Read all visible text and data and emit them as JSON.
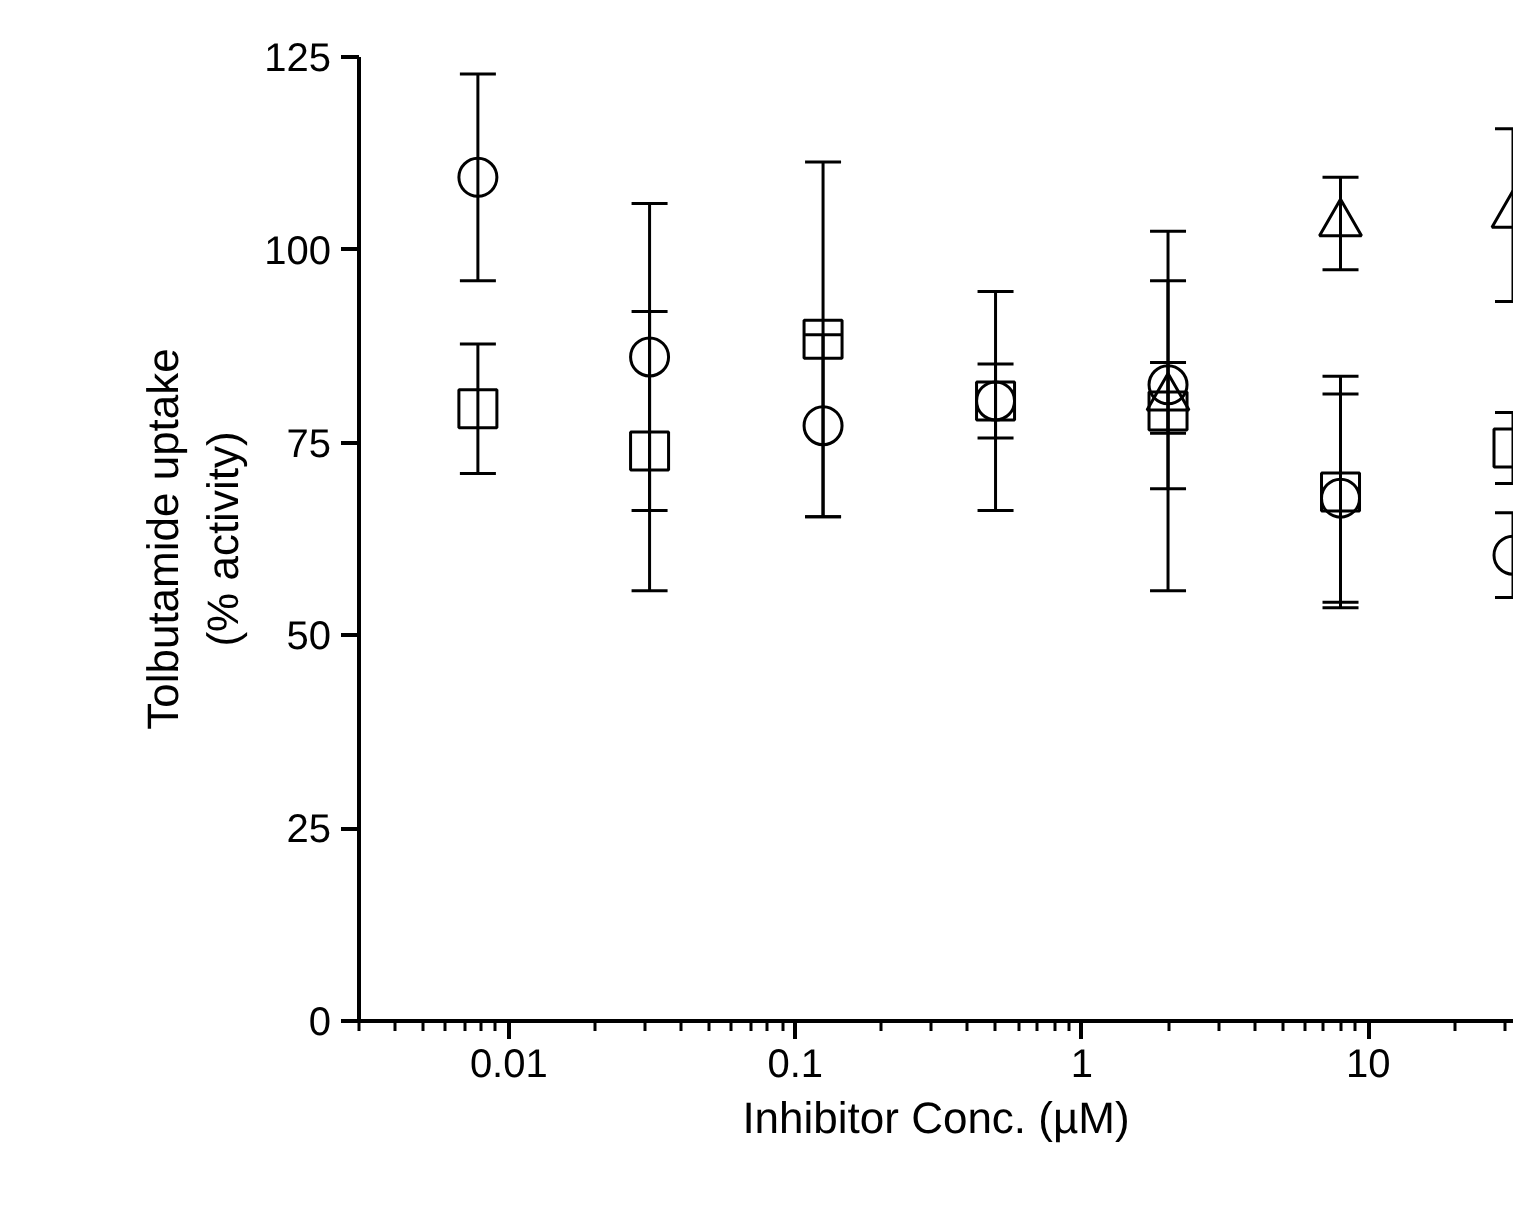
{
  "chart_data": {
    "type": "scatter",
    "xlabel": "Inhibitor Conc. (µM)",
    "ylabel": "Tolbutamide uptake\n(% activity)",
    "log": "x",
    "xlim": [
      0.003,
      32
    ],
    "xticks": [
      0.01,
      0.1,
      1,
      10
    ],
    "ylim": [
      0,
      125
    ],
    "yticks": [
      0,
      25,
      50,
      75,
      100,
      125
    ],
    "grid": false,
    "series": [
      {
        "color": "#000000",
        "marker": "circle",
        "x": [
          0.0078,
          0.031,
          0.125,
          0.5,
          2,
          8,
          32
        ],
        "values": [
          109.4,
          86.1,
          77.2,
          80.4,
          82.5,
          67.8,
          60.4
        ],
        "errors": [
          13.4,
          19.9,
          11.8,
          14.2,
          13.5,
          13.5,
          5.5
        ]
      },
      {
        "color": "#000000",
        "marker": "square",
        "x": [
          0.0078,
          0.031,
          0.125,
          0.5,
          2,
          8,
          32
        ],
        "values": [
          79.4,
          73.9,
          88.4,
          80.4,
          79.1,
          68.6,
          74.3
        ],
        "errors": [
          8.4,
          18.1,
          23.0,
          4.8,
          23.3,
          15.0,
          4.6
        ]
      },
      {
        "color": "#000000",
        "marker": "triangle",
        "x": [
          2,
          8,
          32
        ],
        "values": [
          80.8,
          103.4,
          104.5
        ],
        "errors": [
          4.6,
          6.0,
          11.2
        ]
      }
    ]
  }
}
